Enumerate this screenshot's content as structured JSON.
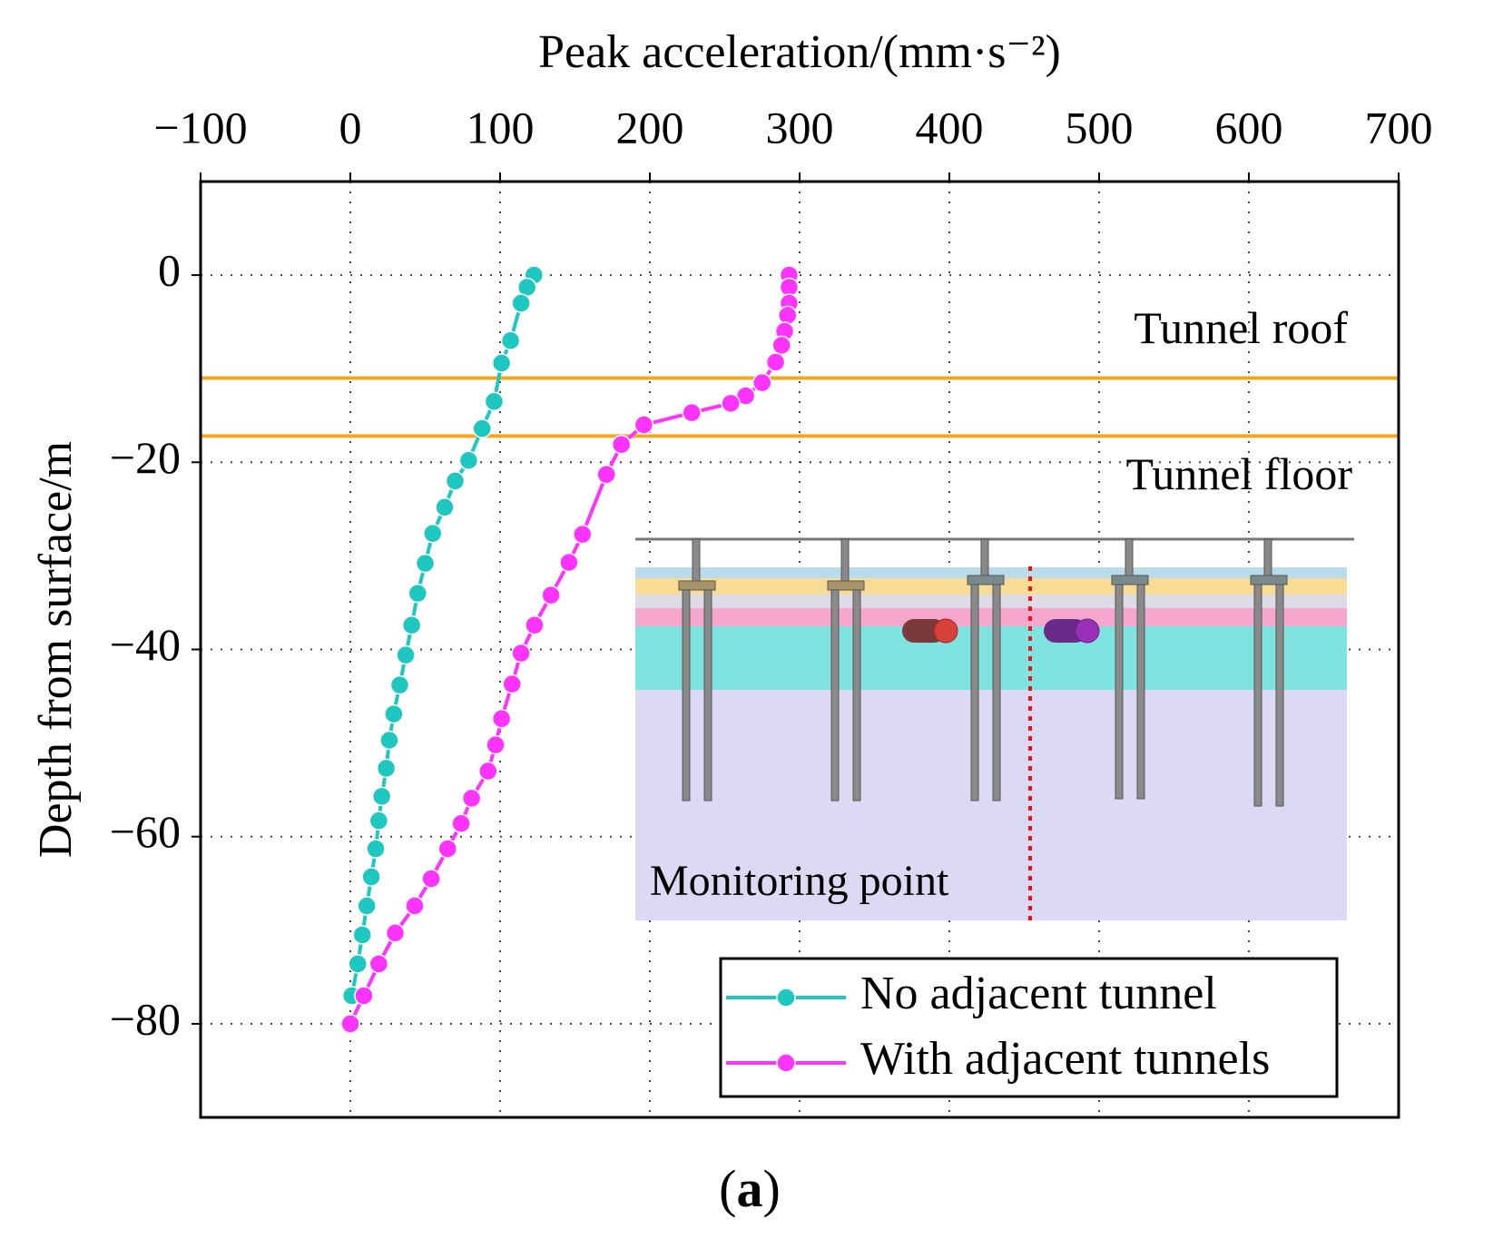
{
  "chart_data": {
    "type": "line",
    "xlabel": "Peak acceleration/(mm·s⁻²)",
    "ylabel": "Depth from surface/m",
    "xlim": [
      -100,
      700
    ],
    "xticks": [
      {
        "value": -100,
        "label": "−100"
      },
      0,
      100,
      200,
      300,
      400,
      500,
      600,
      700
    ],
    "ylim": [
      -90,
      10
    ],
    "yticks": [
      0,
      {
        "value": -20,
        "label": "−20"
      },
      {
        "value": -40,
        "label": "−40"
      },
      {
        "value": -60,
        "label": "−60"
      },
      {
        "value": -80,
        "label": "−80"
      }
    ],
    "grid": true,
    "legend": "lower right",
    "reference_lines": [
      {
        "value": -11,
        "label": "Tunnel roof",
        "color": "#f5a71c"
      },
      {
        "value": -17.2,
        "label": "Tunnel floor",
        "color": "#f5a71c"
      }
    ],
    "annotation": "Monitoring point",
    "caption": "a",
    "series": [
      {
        "name": "No adjacent tunnel",
        "color": "#1ec8c0",
        "x": [
          122.6,
          118,
          114,
          107,
          101,
          96,
          88,
          79,
          70,
          63,
          55,
          50,
          45,
          41,
          37,
          33,
          29,
          26,
          24,
          21,
          19,
          17,
          14,
          11,
          8,
          5,
          1
        ],
        "values": [
          0,
          -1.3,
          -3,
          -7,
          -9.4,
          -13.5,
          -16.4,
          -19.8,
          -22,
          -24.8,
          -27.6,
          -30.8,
          -34,
          -37.4,
          -40.6,
          -43.8,
          -46.9,
          -49.7,
          -52.7,
          -55.7,
          -58.3,
          -61.3,
          -64.3,
          -67.4,
          -70.5,
          -73.6,
          -77
        ]
      },
      {
        "name": "With adjacent tunnels",
        "color": "#ff33ff",
        "x": [
          293,
          293,
          293,
          292,
          290,
          288,
          284,
          275,
          264,
          254,
          228,
          196,
          181,
          171,
          155,
          146,
          134,
          123,
          114,
          108,
          101,
          97,
          92,
          81,
          74,
          65,
          54,
          43,
          30,
          19,
          9,
          0
        ],
        "values": [
          0,
          -1.3,
          -3,
          -4.3,
          -6,
          -7.5,
          -9.3,
          -11.5,
          -12.9,
          -13.7,
          -14.7,
          -16,
          -18.1,
          -21.3,
          -27.7,
          -30.7,
          -34.2,
          -37.4,
          -40.4,
          -43.7,
          -47.4,
          -50.2,
          -53,
          -55.9,
          -58.6,
          -61.3,
          -64.5,
          -67.4,
          -70.3,
          -73.6,
          -77,
          -80
        ]
      }
    ]
  }
}
